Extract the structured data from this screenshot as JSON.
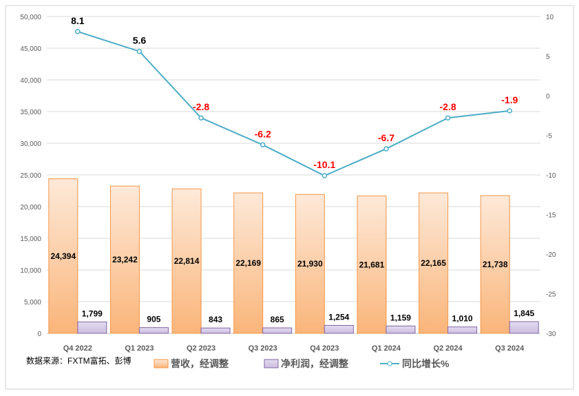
{
  "chart_data": {
    "type": "bar",
    "categories": [
      "Q4 2022",
      "Q1 2023",
      "Q2 2023",
      "Q3 2023",
      "Q4 2023",
      "Q1 2024",
      "Q2 2024",
      "Q3 2024"
    ],
    "series": [
      {
        "name": "营收，经调整",
        "type": "bar",
        "axis": "left",
        "color": "#f7a35c",
        "values": [
          24394,
          23242,
          22814,
          22169,
          21930,
          21681,
          22165,
          21738
        ],
        "labels": [
          "24,394",
          "23,242",
          "22,814",
          "22,169",
          "21,930",
          "21,681",
          "22,165",
          "21,738"
        ]
      },
      {
        "name": "净利润，经调整",
        "type": "bar",
        "axis": "left",
        "color": "#8064a2",
        "values": [
          1799,
          905,
          843,
          865,
          1254,
          1159,
          1010,
          1845
        ],
        "labels": [
          "1,799",
          "905",
          "843",
          "865",
          "1,254",
          "1,159",
          "1,010",
          "1,845"
        ]
      },
      {
        "name": "同比增长%",
        "type": "line",
        "axis": "right",
        "color": "#4bacc6",
        "values": [
          8.1,
          5.6,
          -2.8,
          -6.2,
          -10.1,
          -6.7,
          -2.8,
          -1.9
        ],
        "labels": [
          "8.1",
          "5.6",
          "-2.8",
          "-6.2",
          "-10.1",
          "-6.7",
          "-2.8",
          "-1.9"
        ]
      }
    ],
    "ylim": [
      0,
      50000
    ],
    "y2lim": [
      -30,
      10
    ],
    "yticks": [
      "0",
      "5,000",
      "10,000",
      "15,000",
      "20,000",
      "25,000",
      "30,000",
      "35,000",
      "40,000",
      "45,000",
      "50,000"
    ],
    "y2ticks": [
      "-30",
      "-25",
      "-20",
      "-15",
      "-10",
      "-5",
      "0",
      "5",
      "10"
    ],
    "grid": true,
    "legend": "bottom",
    "source": "数据来源：FXTM富拓、彭博"
  }
}
